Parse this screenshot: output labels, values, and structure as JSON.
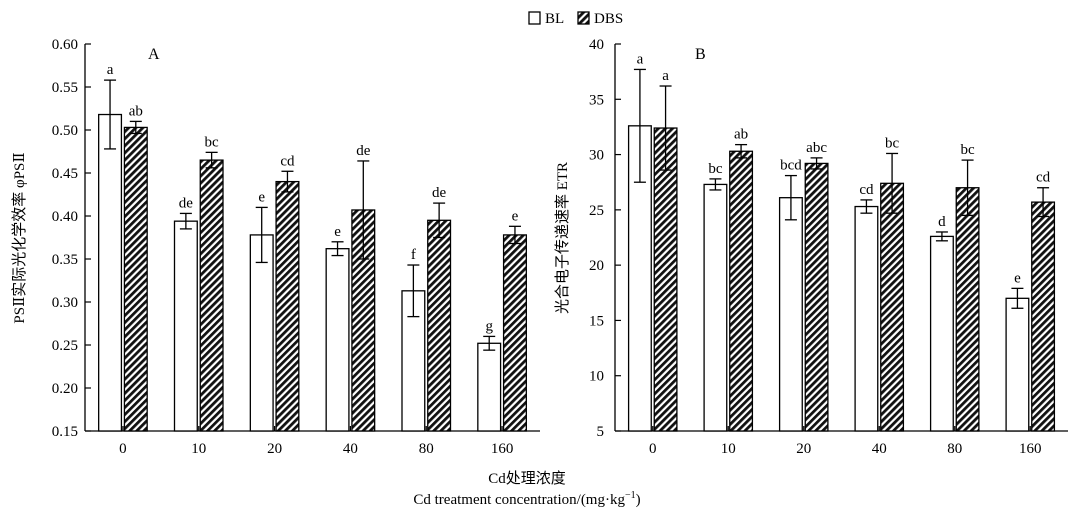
{
  "legend": {
    "items": [
      {
        "name": "BL",
        "pattern": "empty"
      },
      {
        "name": "DBS",
        "pattern": "hatched"
      }
    ]
  },
  "xlabel": {
    "cn": "Cd处理浓度",
    "en": "Cd treatment concentration/(mg·kg",
    "en_sup": "−1",
    "en_end": ")"
  },
  "chart_data": [
    {
      "type": "bar",
      "panel_label": "A",
      "ylabel": "PSⅡ实际光化学效率 φPSⅡ",
      "ylim": [
        0.15,
        0.6
      ],
      "yticks": [
        "0.15",
        "0.20",
        "0.25",
        "0.30",
        "0.35",
        "0.40",
        "0.45",
        "0.50",
        "0.55",
        "0.60"
      ],
      "categories": [
        "0",
        "10",
        "20",
        "40",
        "80",
        "160"
      ],
      "series": [
        {
          "name": "BL",
          "values": [
            0.518,
            0.394,
            0.378,
            0.362,
            0.313,
            0.252
          ],
          "errors": [
            0.04,
            0.009,
            0.032,
            0.008,
            0.03,
            0.008
          ],
          "letters": [
            "a",
            "de",
            "e",
            "e",
            "f",
            "g"
          ]
        },
        {
          "name": "DBS",
          "values": [
            0.503,
            0.465,
            0.44,
            0.407,
            0.395,
            0.378
          ],
          "errors": [
            0.007,
            0.009,
            0.012,
            0.057,
            0.02,
            0.01
          ],
          "letters": [
            "ab",
            "bc",
            "cd",
            "de",
            "de",
            "e"
          ]
        }
      ],
      "grid": false
    },
    {
      "type": "bar",
      "panel_label": "B",
      "ylabel": "光合电子传递速率 ETR",
      "ylim": [
        5,
        40
      ],
      "yticks": [
        "5",
        "10",
        "15",
        "20",
        "25",
        "30",
        "35",
        "40"
      ],
      "categories": [
        "0",
        "10",
        "20",
        "40",
        "80",
        "160"
      ],
      "series": [
        {
          "name": "BL",
          "values": [
            32.6,
            27.3,
            26.1,
            25.3,
            22.6,
            17.0
          ],
          "errors": [
            5.1,
            0.5,
            2.0,
            0.6,
            0.4,
            0.9
          ],
          "letters": [
            "a",
            "bc",
            "bcd",
            "cd",
            "d",
            "e"
          ]
        },
        {
          "name": "DBS",
          "values": [
            32.4,
            30.3,
            29.2,
            27.4,
            27.0,
            25.7
          ],
          "errors": [
            3.8,
            0.6,
            0.5,
            2.7,
            2.5,
            1.3
          ],
          "letters": [
            "a",
            "ab",
            "abc",
            "bc",
            "bc",
            "cd"
          ]
        }
      ],
      "grid": false
    }
  ]
}
